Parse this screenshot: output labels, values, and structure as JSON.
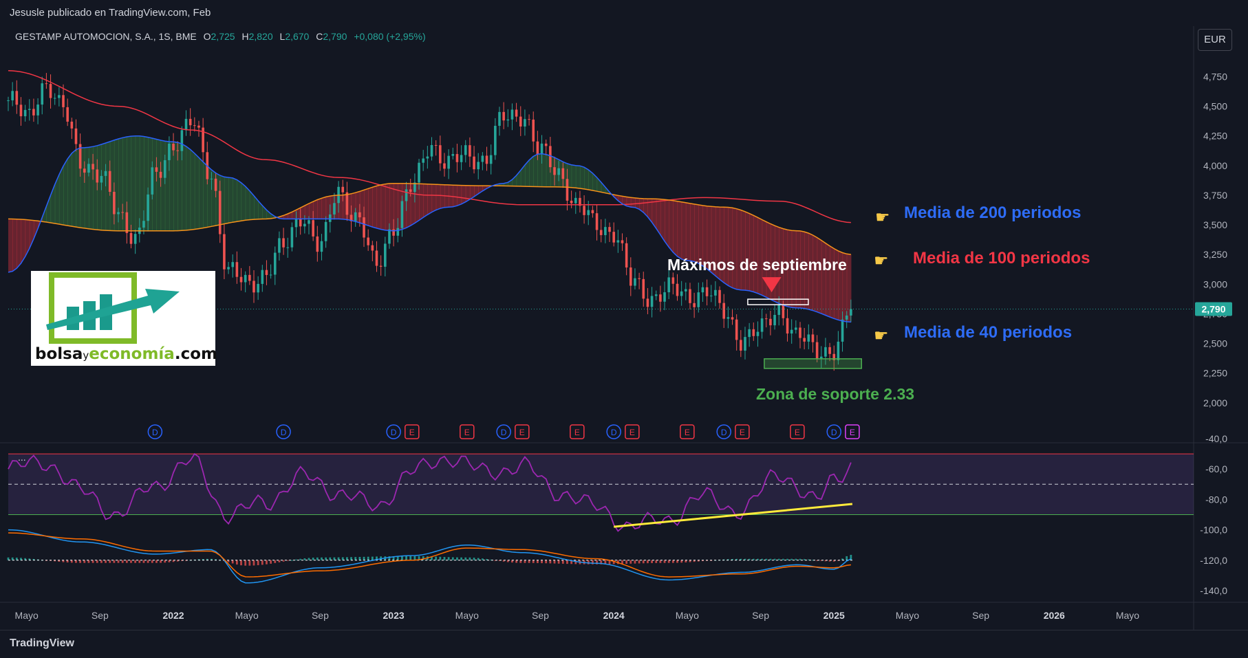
{
  "header": {
    "published": "Jesusle publicado en TradingView.com, Feb",
    "symbol": "GESTAMP AUTOMOCION, S.A., 1S, BME",
    "o_label": "O",
    "o_value": "2,725",
    "h_label": "H",
    "h_value": "2,820",
    "l_label": "L",
    "l_value": "2,670",
    "c_label": "C",
    "c_value": "2,790",
    "change": "+0,080 (+2,95%)",
    "currency": "EUR"
  },
  "footer": {
    "brand": "TradingView"
  },
  "logo": {
    "word1": "bolsa",
    "word2": "y",
    "word3": "economía",
    "word4": ".com"
  },
  "annotations": {
    "ma200": "Media de 200 periodos",
    "ma100": "Media de 100 periodos",
    "ma40": "Media de 40 periodos",
    "max_sept": "Máximos de septiembre",
    "support": "Zona de soporte 2.33"
  },
  "colors": {
    "background": "#131722",
    "up": "#26a69a",
    "down": "#ef5350",
    "ma40": "#2962ff",
    "ma100": "#f7931a",
    "ma200": "#f23645",
    "rsi": "#9c27b0",
    "trendline": "#ffeb3b",
    "support_text": "#4caf50",
    "ma40_text": "#2e6cf6",
    "ma100_text": "#f23645",
    "ma200_text": "#2e6cf6"
  },
  "chart_data": {
    "type": "candlestick",
    "timeframe": "weekly",
    "x_ticks": [
      "Mayo",
      "Sep",
      "2022",
      "Mayo",
      "Sep",
      "2023",
      "Mayo",
      "Sep",
      "2024",
      "Mayo",
      "Sep",
      "2025",
      "Mayo",
      "Sep",
      "2026",
      "Mayo"
    ],
    "price_axis": {
      "ticks": [
        "4,750",
        "4,500",
        "4,250",
        "4,000",
        "3,750",
        "3,500",
        "3,250",
        "3,000",
        "2,750",
        "2,500",
        "2,250",
        "2,000"
      ],
      "range": [
        1.9,
        5.06
      ],
      "last_price": "2,790",
      "last_price_value": 2.79
    },
    "price_series": [
      {
        "date": "2021-04",
        "close": 4.55
      },
      {
        "date": "2021-05",
        "close": 4.4
      },
      {
        "date": "2021-06",
        "close": 4.7
      },
      {
        "date": "2021-07",
        "close": 4.45
      },
      {
        "date": "2021-08",
        "close": 4.05
      },
      {
        "date": "2021-09",
        "close": 3.9
      },
      {
        "date": "2021-10",
        "close": 3.6
      },
      {
        "date": "2021-11",
        "close": 3.4
      },
      {
        "date": "2021-12",
        "close": 3.9
      },
      {
        "date": "2022-01",
        "close": 4.2
      },
      {
        "date": "2022-02",
        "close": 4.35
      },
      {
        "date": "2022-03",
        "close": 3.95
      },
      {
        "date": "2022-04",
        "close": 3.1
      },
      {
        "date": "2022-05",
        "close": 3.0
      },
      {
        "date": "2022-06",
        "close": 3.1
      },
      {
        "date": "2022-07",
        "close": 3.3
      },
      {
        "date": "2022-08",
        "close": 3.6
      },
      {
        "date": "2022-09",
        "close": 3.3
      },
      {
        "date": "2022-10",
        "close": 3.8
      },
      {
        "date": "2022-11",
        "close": 3.55
      },
      {
        "date": "2022-12",
        "close": 3.15
      },
      {
        "date": "2023-01",
        "close": 3.5
      },
      {
        "date": "2023-02",
        "close": 3.8
      },
      {
        "date": "2023-03",
        "close": 4.2
      },
      {
        "date": "2023-04",
        "close": 4.0
      },
      {
        "date": "2023-05",
        "close": 4.1
      },
      {
        "date": "2023-06",
        "close": 4.05
      },
      {
        "date": "2023-07",
        "close": 4.4
      },
      {
        "date": "2023-08",
        "close": 4.45
      },
      {
        "date": "2023-09",
        "close": 4.1
      },
      {
        "date": "2023-10",
        "close": 3.95
      },
      {
        "date": "2023-11",
        "close": 3.65
      },
      {
        "date": "2023-12",
        "close": 3.5
      },
      {
        "date": "2024-01",
        "close": 3.45
      },
      {
        "date": "2024-02",
        "close": 3.0
      },
      {
        "date": "2024-03",
        "close": 2.9
      },
      {
        "date": "2024-04",
        "close": 2.95
      },
      {
        "date": "2024-05",
        "close": 2.9
      },
      {
        "date": "2024-06",
        "close": 2.95
      },
      {
        "date": "2024-07",
        "close": 2.75
      },
      {
        "date": "2024-08",
        "close": 2.55
      },
      {
        "date": "2024-09",
        "close": 2.6
      },
      {
        "date": "2024-10",
        "close": 2.8
      },
      {
        "date": "2024-11",
        "close": 2.55
      },
      {
        "date": "2024-12",
        "close": 2.45
      },
      {
        "date": "2025-01",
        "close": 2.45
      },
      {
        "date": "2025-02",
        "close": 2.79
      }
    ],
    "ma40": [
      {
        "date": "2021-04",
        "value": 3.1
      },
      {
        "date": "2021-08",
        "value": 4.15
      },
      {
        "date": "2021-11",
        "value": 4.25
      },
      {
        "date": "2022-01",
        "value": 4.2
      },
      {
        "date": "2022-04",
        "value": 3.9
      },
      {
        "date": "2022-07",
        "value": 3.55
      },
      {
        "date": "2022-10",
        "value": 3.55
      },
      {
        "date": "2023-01",
        "value": 3.45
      },
      {
        "date": "2023-04",
        "value": 3.65
      },
      {
        "date": "2023-07",
        "value": 3.85
      },
      {
        "date": "2023-09",
        "value": 4.1
      },
      {
        "date": "2023-11",
        "value": 4.0
      },
      {
        "date": "2024-02",
        "value": 3.65
      },
      {
        "date": "2024-05",
        "value": 3.2
      },
      {
        "date": "2024-08",
        "value": 2.95
      },
      {
        "date": "2024-11",
        "value": 2.8
      },
      {
        "date": "2025-02",
        "value": 2.68
      }
    ],
    "ma100": [
      {
        "date": "2021-04",
        "value": 3.55
      },
      {
        "date": "2021-10",
        "value": 3.45
      },
      {
        "date": "2022-01",
        "value": 3.45
      },
      {
        "date": "2022-06",
        "value": 3.55
      },
      {
        "date": "2022-10",
        "value": 3.75
      },
      {
        "date": "2023-01",
        "value": 3.85
      },
      {
        "date": "2023-06",
        "value": 3.83
      },
      {
        "date": "2023-10",
        "value": 3.82
      },
      {
        "date": "2024-03",
        "value": 3.72
      },
      {
        "date": "2024-07",
        "value": 3.65
      },
      {
        "date": "2024-11",
        "value": 3.45
      },
      {
        "date": "2025-02",
        "value": 3.25
      }
    ],
    "ma200": [
      {
        "date": "2021-04",
        "value": 4.8
      },
      {
        "date": "2021-10",
        "value": 4.5
      },
      {
        "date": "2022-02",
        "value": 4.3
      },
      {
        "date": "2022-06",
        "value": 4.05
      },
      {
        "date": "2022-10",
        "value": 3.9
      },
      {
        "date": "2023-03",
        "value": 3.75
      },
      {
        "date": "2023-08",
        "value": 3.67
      },
      {
        "date": "2024-01",
        "value": 3.67
      },
      {
        "date": "2024-06",
        "value": 3.73
      },
      {
        "date": "2024-10",
        "value": 3.7
      },
      {
        "date": "2025-02",
        "value": 3.52
      }
    ],
    "events": [
      {
        "date": "2021-12",
        "type": "D"
      },
      {
        "date": "2022-07",
        "type": "D"
      },
      {
        "date": "2023-01",
        "type": "D"
      },
      {
        "date": "2023-02",
        "type": "E"
      },
      {
        "date": "2023-05",
        "type": "E"
      },
      {
        "date": "2023-07",
        "type": "D"
      },
      {
        "date": "2023-08",
        "type": "E"
      },
      {
        "date": "2023-11",
        "type": "E"
      },
      {
        "date": "2024-01",
        "type": "D"
      },
      {
        "date": "2024-02",
        "type": "E"
      },
      {
        "date": "2024-05",
        "type": "E"
      },
      {
        "date": "2024-07",
        "type": "D"
      },
      {
        "date": "2024-08",
        "type": "E"
      },
      {
        "date": "2024-11",
        "type": "E"
      },
      {
        "date": "2025-01",
        "type": "D"
      },
      {
        "date": "2025-02",
        "type": "E"
      }
    ],
    "support_level": 2.33,
    "resistance_level": 2.85,
    "oscillator_axis": {
      "ticks": [
        "-40,0",
        "-60,0",
        "-80,0",
        "-100,0",
        "-120,0",
        "-140,0"
      ],
      "upper_band": -50,
      "mid_line": -70,
      "lower_band": -90
    },
    "rsi_series": [
      {
        "date": "2021-04",
        "value": -60
      },
      {
        "date": "2021-06",
        "value": -55
      },
      {
        "date": "2021-08",
        "value": -75
      },
      {
        "date": "2021-10",
        "value": -90
      },
      {
        "date": "2021-12",
        "value": -70
      },
      {
        "date": "2022-02",
        "value": -55
      },
      {
        "date": "2022-04",
        "value": -90
      },
      {
        "date": "2022-06",
        "value": -82
      },
      {
        "date": "2022-08",
        "value": -65
      },
      {
        "date": "2022-10",
        "value": -75
      },
      {
        "date": "2022-12",
        "value": -85
      },
      {
        "date": "2023-02",
        "value": -62
      },
      {
        "date": "2023-04",
        "value": -52
      },
      {
        "date": "2023-06",
        "value": -62
      },
      {
        "date": "2023-08",
        "value": -58
      },
      {
        "date": "2023-10",
        "value": -75
      },
      {
        "date": "2023-12",
        "value": -85
      },
      {
        "date": "2024-02",
        "value": -98
      },
      {
        "date": "2024-04",
        "value": -92
      },
      {
        "date": "2024-06",
        "value": -78
      },
      {
        "date": "2024-08",
        "value": -88
      },
      {
        "date": "2024-10",
        "value": -62
      },
      {
        "date": "2024-12",
        "value": -82
      },
      {
        "date": "2025-01",
        "value": -65
      },
      {
        "date": "2025-02",
        "value": -57
      }
    ],
    "rsi_trendline": [
      {
        "date": "2024-01",
        "value": -98
      },
      {
        "date": "2025-02",
        "value": -83
      }
    ],
    "macd_line": [
      {
        "date": "2021-04",
        "value": -100
      },
      {
        "date": "2021-08",
        "value": -108
      },
      {
        "date": "2021-12",
        "value": -116
      },
      {
        "date": "2022-03",
        "value": -113
      },
      {
        "date": "2022-05",
        "value": -135
      },
      {
        "date": "2022-09",
        "value": -125
      },
      {
        "date": "2023-02",
        "value": -117
      },
      {
        "date": "2023-05",
        "value": -110
      },
      {
        "date": "2023-08",
        "value": -115
      },
      {
        "date": "2023-12",
        "value": -122
      },
      {
        "date": "2024-04",
        "value": -133
      },
      {
        "date": "2024-08",
        "value": -128
      },
      {
        "date": "2024-11",
        "value": -123
      },
      {
        "date": "2025-01",
        "value": -126
      },
      {
        "date": "2025-02",
        "value": -119
      }
    ],
    "signal_line": [
      {
        "date": "2021-04",
        "value": -102
      },
      {
        "date": "2021-08",
        "value": -106
      },
      {
        "date": "2021-12",
        "value": -114
      },
      {
        "date": "2022-03",
        "value": -114
      },
      {
        "date": "2022-05",
        "value": -131
      },
      {
        "date": "2022-09",
        "value": -127
      },
      {
        "date": "2023-02",
        "value": -120
      },
      {
        "date": "2023-05",
        "value": -112
      },
      {
        "date": "2023-08",
        "value": -113
      },
      {
        "date": "2023-12",
        "value": -119
      },
      {
        "date": "2024-04",
        "value": -131
      },
      {
        "date": "2024-08",
        "value": -129
      },
      {
        "date": "2024-11",
        "value": -124
      },
      {
        "date": "2025-01",
        "value": -125
      },
      {
        "date": "2025-02",
        "value": -123
      }
    ]
  }
}
